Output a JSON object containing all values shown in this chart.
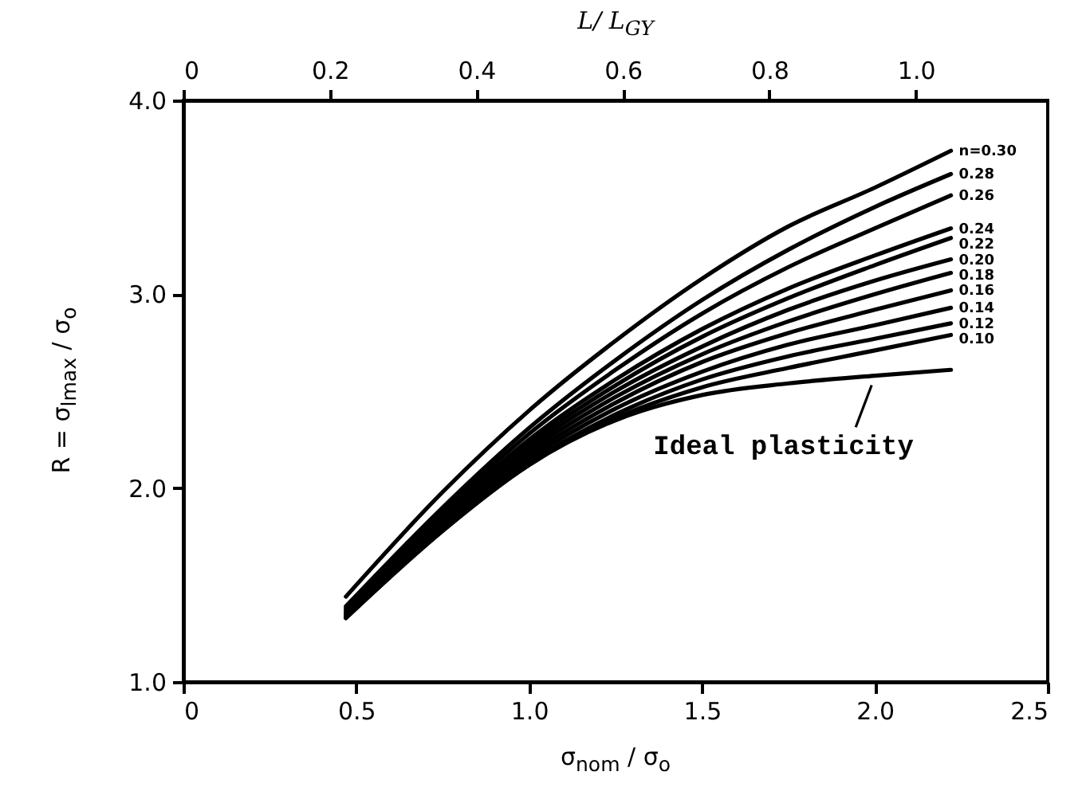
{
  "chart_data": {
    "type": "line",
    "xlabel": "σ$_{nom}$ / σ$_{o}$",
    "ylabel": "R = σ$_{lmax}$ / σ$_{o}$",
    "x2label": "L/ L$_{GY}$",
    "x": [
      0.47,
      0.75,
      1.0,
      1.25,
      1.5,
      1.75,
      2.0,
      2.22
    ],
    "series": [
      {
        "name": "n=0.30",
        "color": "#000000",
        "values": [
          1.44,
          1.98,
          2.4,
          2.76,
          3.08,
          3.35,
          3.55,
          3.74
        ]
      },
      {
        "name": "0.28",
        "color": "#000000",
        "values": [
          1.39,
          1.9,
          2.31,
          2.66,
          2.97,
          3.23,
          3.45,
          3.62
        ]
      },
      {
        "name": "0.26",
        "color": "#000000",
        "values": [
          1.38,
          1.88,
          2.28,
          2.61,
          2.9,
          3.14,
          3.34,
          3.51
        ]
      },
      {
        "name": "0.24",
        "color": "#000000",
        "values": [
          1.37,
          1.86,
          2.25,
          2.56,
          2.82,
          3.03,
          3.2,
          3.34
        ]
      },
      {
        "name": "0.22",
        "color": "#000000",
        "values": [
          1.36,
          1.84,
          2.23,
          2.53,
          2.78,
          2.98,
          3.15,
          3.29
        ]
      },
      {
        "name": "0.20",
        "color": "#000000",
        "values": [
          1.35,
          1.83,
          2.21,
          2.5,
          2.73,
          2.92,
          3.07,
          3.18
        ]
      },
      {
        "name": "0.18",
        "color": "#000000",
        "values": [
          1.35,
          1.82,
          2.19,
          2.47,
          2.69,
          2.86,
          3.0,
          3.11
        ]
      },
      {
        "name": "0.16",
        "color": "#000000",
        "values": [
          1.34,
          1.81,
          2.17,
          2.44,
          2.65,
          2.8,
          2.92,
          3.02
        ]
      },
      {
        "name": "0.14",
        "color": "#000000",
        "values": [
          1.34,
          1.8,
          2.15,
          2.41,
          2.6,
          2.74,
          2.84,
          2.93
        ]
      },
      {
        "name": "0.12",
        "color": "#000000",
        "values": [
          1.33,
          1.79,
          2.13,
          2.38,
          2.56,
          2.68,
          2.77,
          2.85
        ]
      },
      {
        "name": "0.10",
        "color": "#000000",
        "values": [
          1.33,
          1.78,
          2.12,
          2.36,
          2.52,
          2.62,
          2.71,
          2.79
        ]
      },
      {
        "name": "Ideal plasticity",
        "color": "#000000",
        "values": [
          1.33,
          1.78,
          2.12,
          2.35,
          2.48,
          2.54,
          2.58,
          2.61
        ]
      }
    ],
    "xlim": [
      0,
      2.5
    ],
    "xticks": [
      0,
      0.5,
      {
        "value": 1,
        "label": "1.0"
      },
      1.5,
      {
        "value": 2,
        "label": "2.0"
      },
      2.5
    ],
    "ylim": [
      1,
      4
    ],
    "yticks": [
      {
        "value": 1,
        "label": "1.0"
      },
      {
        "value": 2,
        "label": "2.0"
      },
      {
        "value": 3,
        "label": "3.0"
      },
      {
        "value": 4,
        "label": "4.0"
      }
    ],
    "x2lim": [
      0,
      1.18
    ],
    "x2ticks": [
      0,
      0.2,
      0.4,
      0.6,
      0.8,
      {
        "value": 1,
        "label": "1.0"
      }
    ]
  }
}
